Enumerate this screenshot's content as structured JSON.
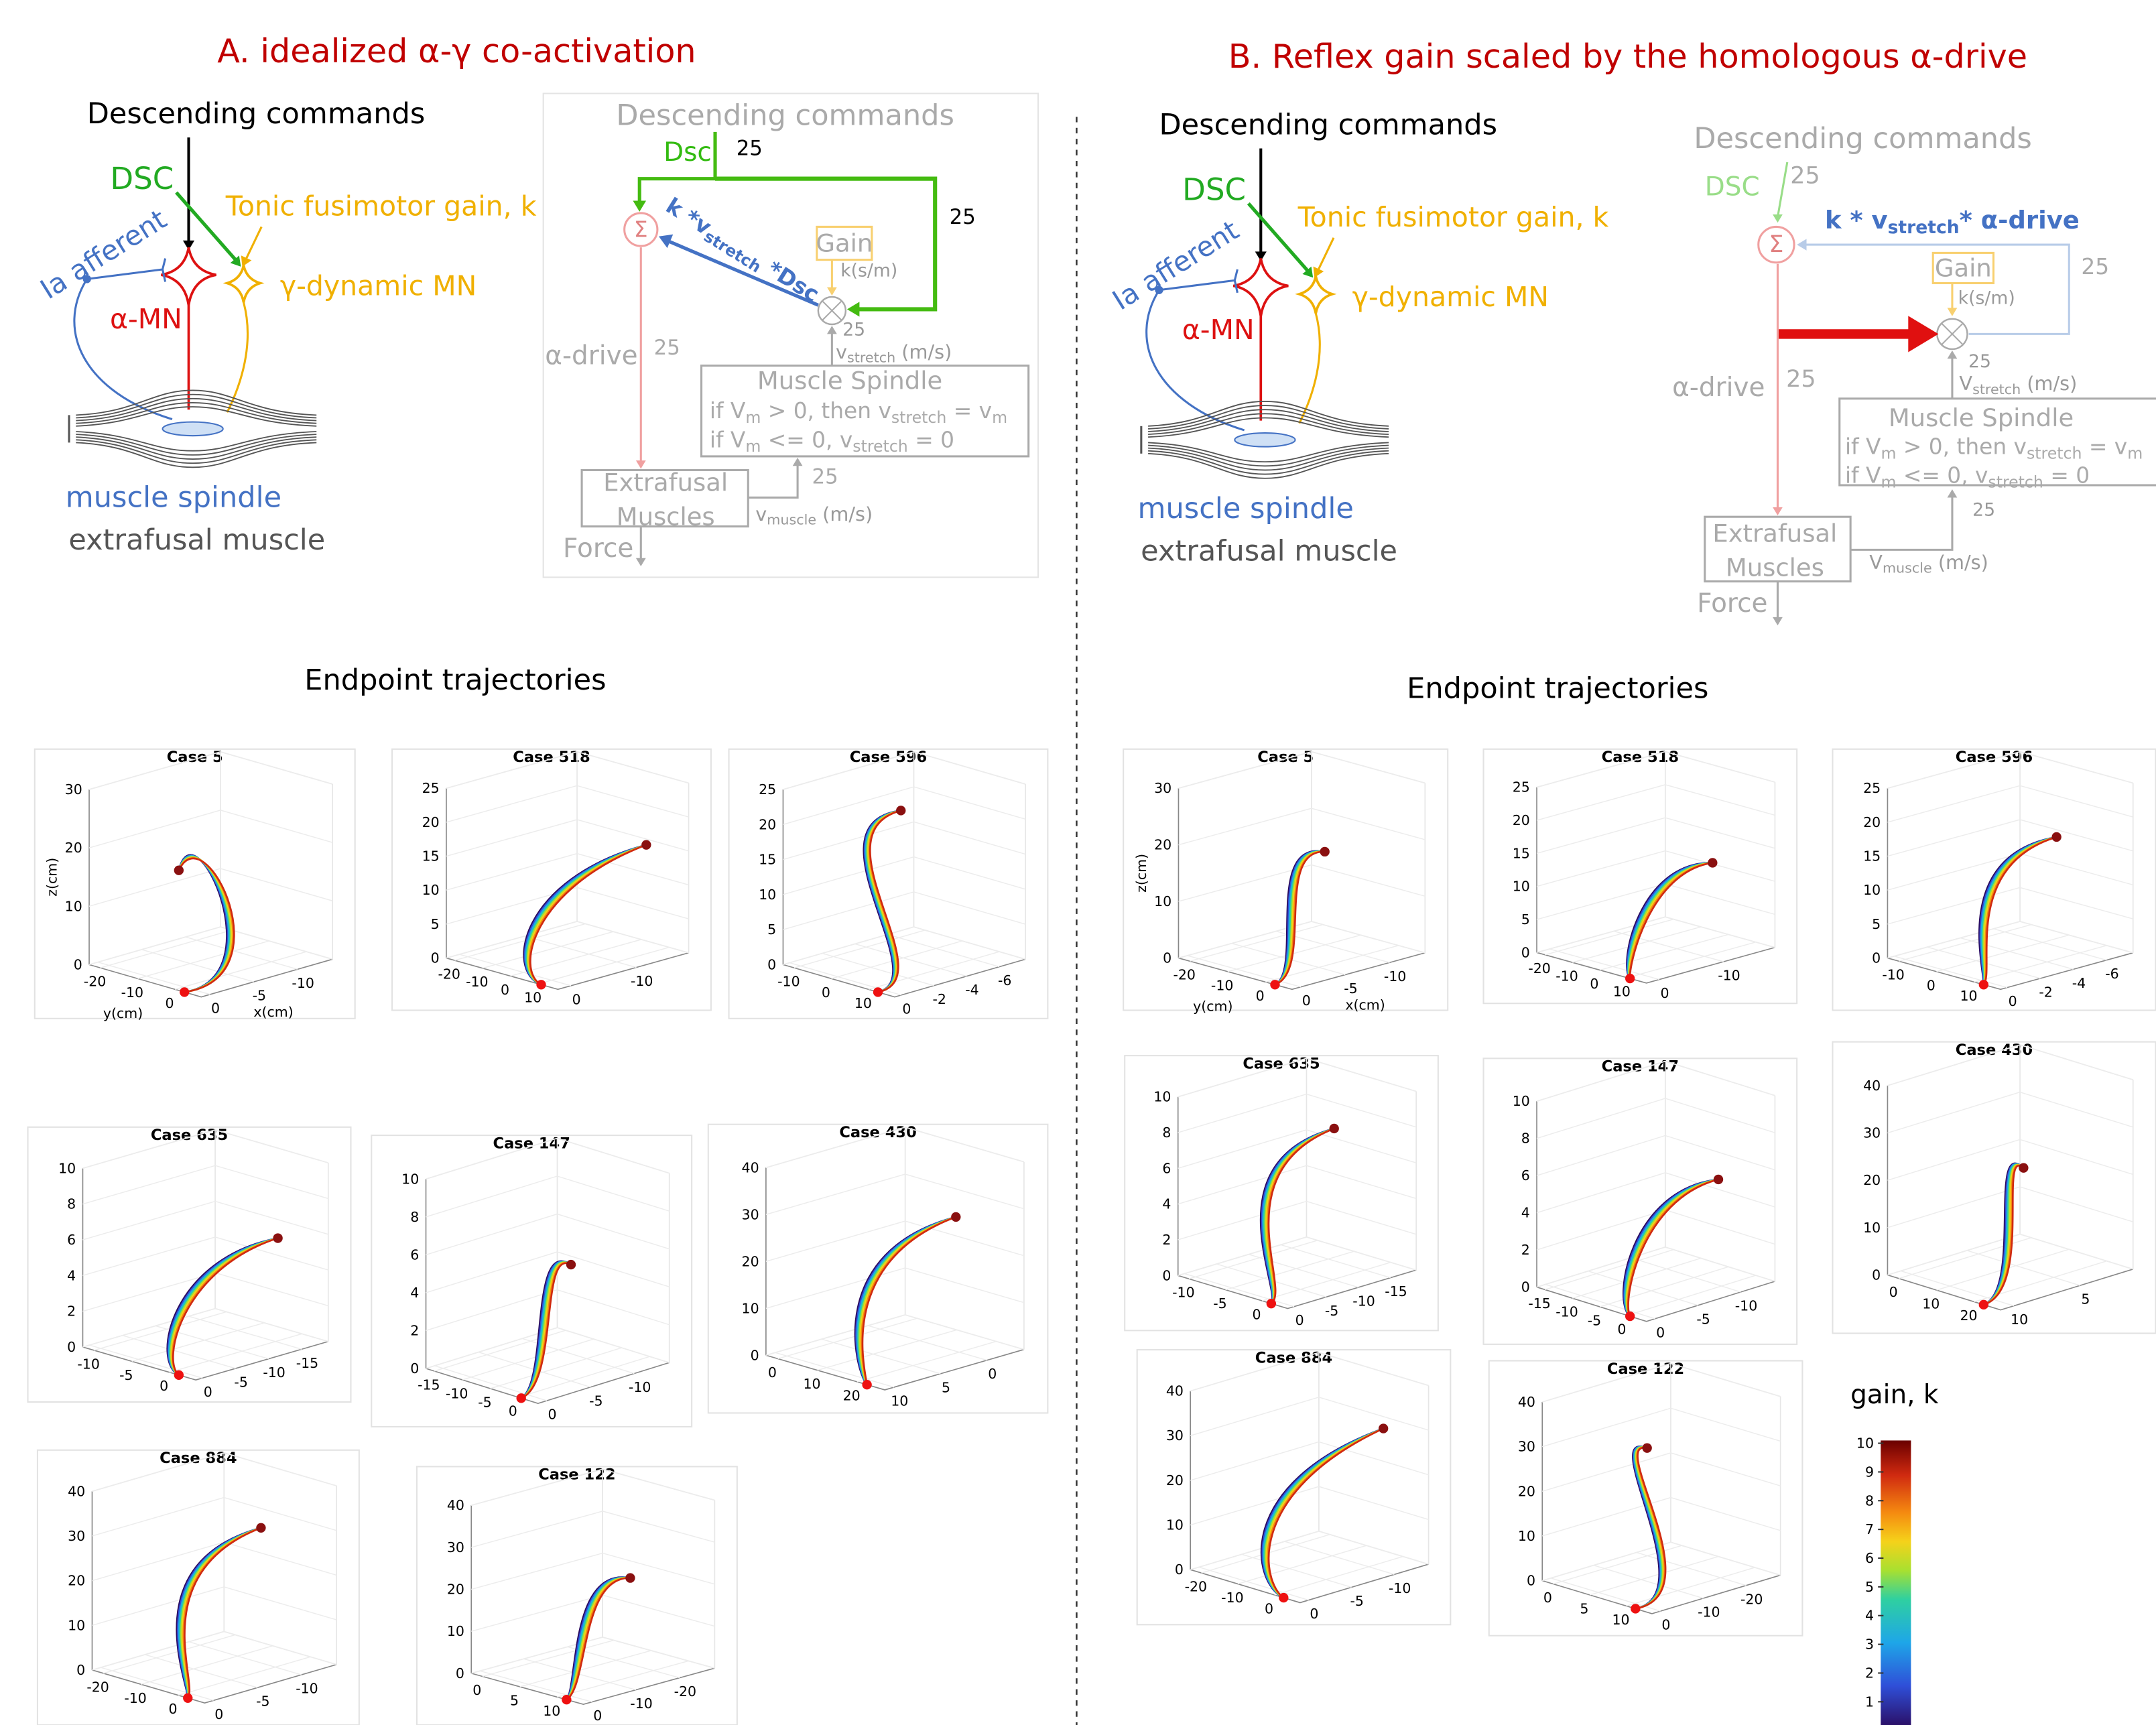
{
  "panel_a": {
    "title": "A.  idealized α-γ co-activation",
    "schematic": {
      "descending": "Descending commands",
      "dsc": "DSC",
      "tonic": "Tonic fusimotor gain, k",
      "ia": "Ia afferent",
      "alpha_mn": "α-MN",
      "gamma_mn": "γ-dynamic MN",
      "spindle": "muscle spindle",
      "extrafusal": "extrafusal muscle"
    },
    "diagram": {
      "descending": "Descending commands",
      "dsc": "Dsc",
      "dsc_gain": 25,
      "loop_gain": 25,
      "sum": "Σ",
      "feedback": [
        "k *v",
        "stretch",
        " *Dsc"
      ],
      "gain": "Gain",
      "gain_unit": "k(s/m)",
      "spindle_gain": 25,
      "v_stretch": [
        "v",
        "stretch",
        " (m/s)"
      ],
      "alpha_drive": "α-drive",
      "alpha_gain": 25,
      "spindle_title": "Muscle Spindle",
      "rule_1": [
        "if V",
        "m",
        " > 0, then v",
        "stretch",
        " = v",
        "m"
      ],
      "rule_2": [
        "if V",
        "m",
        " <= 0, v",
        "stretch",
        " = 0"
      ],
      "muscles_1": "Extrafusal",
      "muscles_2": "Muscles",
      "muscle_gain": 25,
      "v_muscle": [
        "v",
        "muscle",
        " (m/s)"
      ],
      "force": "Force"
    },
    "trajectories_title": "Endpoint trajectories",
    "plots": [
      {
        "title": "Case 5",
        "z_ticks": [
          0,
          10,
          20,
          30
        ],
        "y_ticks": [
          -20,
          -10,
          0
        ],
        "x_ticks": [
          0,
          -5,
          -10
        ],
        "z_label": "z(cm)",
        "y_label": "y(cm)",
        "x_label": "x(cm)"
      },
      {
        "title": "Case 518",
        "z_ticks": [
          0,
          5,
          10,
          15,
          20,
          25
        ],
        "y_ticks": [
          -20,
          -10,
          0,
          10
        ],
        "x_ticks": [
          0,
          -10
        ]
      },
      {
        "title": "Case 596",
        "z_ticks": [
          0,
          5,
          10,
          15,
          20,
          25
        ],
        "y_ticks": [
          -10,
          0,
          10
        ],
        "x_ticks": [
          0,
          -2,
          -4,
          -6
        ]
      },
      {
        "title": "Case 635",
        "z_ticks": [
          0,
          2,
          4,
          6,
          8,
          10
        ],
        "y_ticks": [
          -10,
          -5,
          0
        ],
        "x_ticks": [
          0,
          -5,
          -10,
          -15
        ]
      },
      {
        "title": "Case 147",
        "z_ticks": [
          0,
          2,
          4,
          6,
          8,
          10
        ],
        "y_ticks": [
          -15,
          -10,
          -5,
          0
        ],
        "x_ticks": [
          0,
          -5,
          -10
        ]
      },
      {
        "title": "Case 430",
        "z_ticks": [
          0,
          10,
          20,
          30,
          40
        ],
        "y_ticks": [
          0,
          10,
          20
        ],
        "x_ticks": [
          10,
          5,
          0
        ]
      },
      {
        "title": "Case 884",
        "z_ticks": [
          0,
          10,
          20,
          30,
          40
        ],
        "y_ticks": [
          -20,
          -10,
          0
        ],
        "x_ticks": [
          0,
          -5,
          -10
        ]
      },
      {
        "title": "Case 122",
        "z_ticks": [
          0,
          10,
          20,
          30,
          40
        ],
        "y_ticks": [
          0,
          5,
          10
        ],
        "x_ticks": [
          0,
          -10,
          -20
        ]
      }
    ]
  },
  "panel_b": {
    "title": "B. Reflex gain scaled by the homologous α-drive",
    "schematic": {
      "descending": "Descending commands",
      "dsc": "DSC",
      "tonic": "Tonic fusimotor gain, k",
      "ia": "Ia afferent",
      "alpha_mn": "α-MN",
      "gamma_mn": "γ-dynamic MN",
      "spindle": "muscle spindle",
      "extrafusal": "extrafusal muscle"
    },
    "diagram": {
      "descending": "Descending commands",
      "dsc": "DSC",
      "dsc_gain": 25,
      "loop_gain": 25,
      "sum": "Σ",
      "feedback": [
        "k * v",
        "stretch",
        "* α-drive"
      ],
      "gain": "Gain",
      "gain_unit": "k(s/m)",
      "spindle_gain": 25,
      "v_stretch": [
        "V",
        "stretch",
        " (m/s)"
      ],
      "alpha_drive": "α-drive",
      "alpha_gain": 25,
      "spindle_title": "Muscle Spindle",
      "rule_1": [
        "if V",
        "m",
        " > 0, then v",
        "stretch",
        " = v",
        "m"
      ],
      "rule_2": [
        "if V",
        "m",
        " <= 0, v",
        "stretch",
        " = 0"
      ],
      "muscles_1": "Extrafusal",
      "muscles_2": "Muscles",
      "muscle_gain": 25,
      "v_muscle": [
        "V",
        "muscle",
        " (m/s)"
      ],
      "force": "Force"
    },
    "trajectories_title": "Endpoint trajectories",
    "plots": [
      {
        "title": "Case 5",
        "z_ticks": [
          0,
          10,
          20,
          30
        ],
        "y_ticks": [
          -20,
          -10,
          0
        ],
        "x_ticks": [
          0,
          -5,
          -10
        ],
        "z_label": "z(cm)",
        "y_label": "y(cm)",
        "x_label": "x(cm)"
      },
      {
        "title": "Case 518",
        "z_ticks": [
          0,
          5,
          10,
          15,
          20,
          25
        ],
        "y_ticks": [
          -20,
          -10,
          0,
          10
        ],
        "x_ticks": [
          0,
          -10
        ]
      },
      {
        "title": "Case 596",
        "z_ticks": [
          0,
          5,
          10,
          15,
          20,
          25
        ],
        "y_ticks": [
          -10,
          0,
          10
        ],
        "x_ticks": [
          0,
          -2,
          -4,
          -6
        ]
      },
      {
        "title": "Case 635",
        "z_ticks": [
          0,
          2,
          4,
          6,
          8,
          10
        ],
        "y_ticks": [
          -10,
          -5,
          0
        ],
        "x_ticks": [
          0,
          -5,
          -10,
          -15
        ]
      },
      {
        "title": "Case 147",
        "z_ticks": [
          0,
          2,
          4,
          6,
          8,
          10
        ],
        "y_ticks": [
          -15,
          -10,
          -5,
          0
        ],
        "x_ticks": [
          0,
          -5,
          -10
        ]
      },
      {
        "title": "Case 430",
        "z_ticks": [
          0,
          10,
          20,
          30,
          40
        ],
        "y_ticks": [
          0,
          10,
          20
        ],
        "x_ticks": [
          10,
          5
        ]
      },
      {
        "title": "Case 884",
        "z_ticks": [
          0,
          10,
          20,
          30,
          40
        ],
        "y_ticks": [
          -20,
          -10,
          0
        ],
        "x_ticks": [
          0,
          -5,
          -10
        ]
      },
      {
        "title": "Case 122",
        "z_ticks": [
          0,
          10,
          20,
          30,
          40
        ],
        "y_ticks": [
          0,
          5,
          10
        ],
        "x_ticks": [
          0,
          -10,
          -20
        ]
      }
    ]
  },
  "colorbar": {
    "label": "gain, k",
    "ticks": [
      1,
      2,
      3,
      4,
      5,
      6,
      7,
      8,
      9,
      10
    ]
  }
}
